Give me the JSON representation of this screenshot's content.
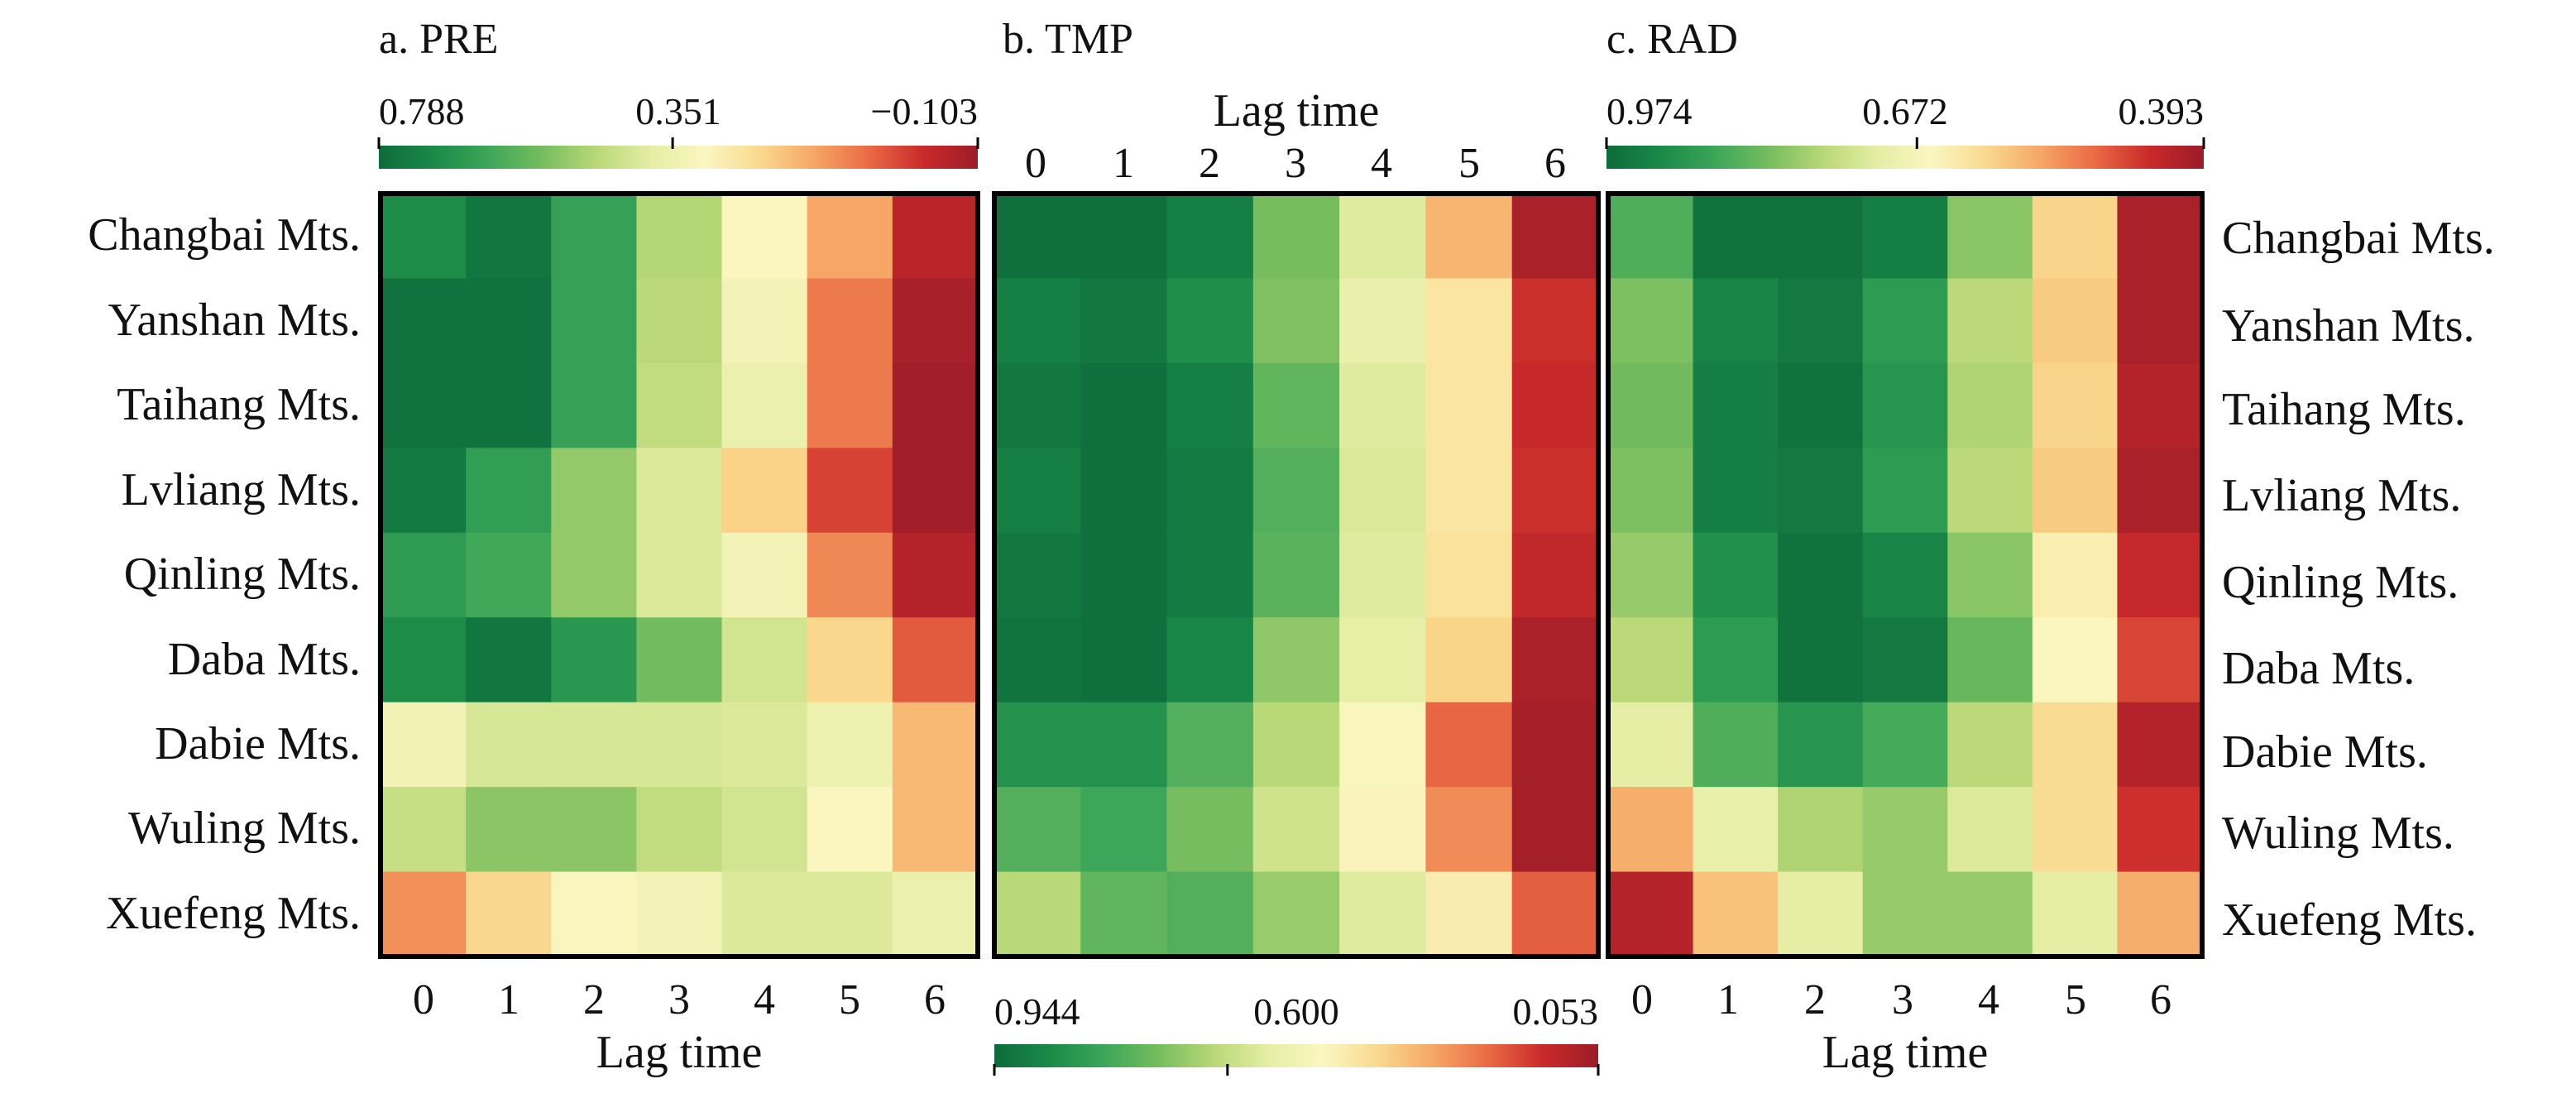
{
  "chart_data": [
    {
      "type": "heatmap",
      "panel": "a",
      "title": "a. PRE",
      "xlabel": "Lag time",
      "x": [
        "0",
        "1",
        "2",
        "3",
        "4",
        "5",
        "6"
      ],
      "regions": [
        "Changbai Mts.",
        "Yanshan Mts.",
        "Taihang Mts.",
        "Lvliang Mts.",
        "Qinling Mts.",
        "Daba Mts.",
        "Dabie Mts.",
        "Wuling Mts.",
        "Xuefeng Mts."
      ],
      "colorbar": {
        "min": -0.103,
        "max": 0.788,
        "ticks": [
          "0.788",
          "0.351",
          "−0.103"
        ],
        "tick_values": [
          0.788,
          0.351,
          -0.103
        ],
        "position": "top"
      },
      "values": [
        [
          0.7,
          0.76,
          0.64,
          0.47,
          0.3,
          0.14,
          -0.05
        ],
        [
          0.77,
          0.77,
          0.64,
          0.46,
          0.33,
          0.08,
          -0.08
        ],
        [
          0.77,
          0.77,
          0.64,
          0.45,
          0.36,
          0.08,
          -0.09
        ],
        [
          0.75,
          0.65,
          0.51,
          0.4,
          0.21,
          0.01,
          -0.09
        ],
        [
          0.66,
          0.62,
          0.51,
          0.4,
          0.33,
          0.1,
          -0.06
        ],
        [
          0.7,
          0.76,
          0.67,
          0.55,
          0.42,
          0.22,
          0.04
        ],
        [
          0.34,
          0.41,
          0.41,
          0.41,
          0.4,
          0.35,
          0.17
        ],
        [
          0.44,
          0.52,
          0.52,
          0.45,
          0.42,
          0.3,
          0.17
        ],
        [
          0.11,
          0.22,
          0.31,
          0.33,
          0.4,
          0.4,
          0.36
        ]
      ]
    },
    {
      "type": "heatmap",
      "panel": "b",
      "title": "b. TMP",
      "xlabel": "Lag time",
      "x": [
        "0",
        "1",
        "2",
        "3",
        "4",
        "5",
        "6"
      ],
      "regions": [
        "Changbai Mts.",
        "Yanshan Mts.",
        "Taihang Mts.",
        "Lvliang Mts.",
        "Qinling Mts.",
        "Daba Mts.",
        "Dabie Mts.",
        "Wuling Mts.",
        "Xuefeng Mts."
      ],
      "colorbar": {
        "min": 0.053,
        "max": 0.944,
        "ticks": [
          "0.944",
          "0.600",
          "0.053"
        ],
        "tick_values": [
          0.944,
          0.6,
          0.053
        ],
        "position": "bottom"
      },
      "values": [
        [
          0.93,
          0.93,
          0.89,
          0.7,
          0.55,
          0.32,
          0.08
        ],
        [
          0.89,
          0.91,
          0.85,
          0.69,
          0.52,
          0.41,
          0.14
        ],
        [
          0.91,
          0.93,
          0.89,
          0.73,
          0.55,
          0.41,
          0.13
        ],
        [
          0.89,
          0.93,
          0.9,
          0.75,
          0.56,
          0.41,
          0.14
        ],
        [
          0.91,
          0.93,
          0.9,
          0.74,
          0.55,
          0.4,
          0.12
        ],
        [
          0.92,
          0.93,
          0.87,
          0.67,
          0.53,
          0.37,
          0.08
        ],
        [
          0.84,
          0.84,
          0.75,
          0.62,
          0.47,
          0.21,
          0.07
        ],
        [
          0.75,
          0.78,
          0.7,
          0.58,
          0.45,
          0.26,
          0.07
        ],
        [
          0.62,
          0.73,
          0.75,
          0.66,
          0.55,
          0.43,
          0.2
        ]
      ]
    },
    {
      "type": "heatmap",
      "panel": "c",
      "title": "c. RAD",
      "xlabel": "Lag time",
      "x": [
        "0",
        "1",
        "2",
        "3",
        "4",
        "5",
        "6"
      ],
      "regions": [
        "Changbai Mts.",
        "Yanshan Mts.",
        "Taihang Mts.",
        "Lvliang Mts.",
        "Qinling Mts.",
        "Daba Mts.",
        "Dabie Mts.",
        "Wuling Mts.",
        "Xuefeng Mts."
      ],
      "colorbar": {
        "min": 0.393,
        "max": 0.974,
        "ticks": [
          "0.974",
          "0.672",
          "0.393"
        ],
        "tick_values": [
          0.974,
          0.672,
          0.393
        ],
        "position": "top"
      },
      "values": [
        [
          0.85,
          0.96,
          0.96,
          0.94,
          0.8,
          0.6,
          0.41
        ],
        [
          0.81,
          0.93,
          0.95,
          0.89,
          0.76,
          0.59,
          0.41
        ],
        [
          0.82,
          0.94,
          0.96,
          0.9,
          0.77,
          0.6,
          0.42
        ],
        [
          0.81,
          0.94,
          0.95,
          0.89,
          0.76,
          0.59,
          0.41
        ],
        [
          0.79,
          0.91,
          0.96,
          0.93,
          0.8,
          0.64,
          0.44
        ],
        [
          0.76,
          0.89,
          0.96,
          0.95,
          0.83,
          0.66,
          0.47
        ],
        [
          0.71,
          0.85,
          0.9,
          0.86,
          0.76,
          0.61,
          0.42
        ],
        [
          0.56,
          0.7,
          0.77,
          0.79,
          0.72,
          0.61,
          0.45
        ],
        [
          0.42,
          0.58,
          0.71,
          0.79,
          0.79,
          0.71,
          0.56
        ]
      ]
    }
  ],
  "colors": {
    "scale": [
      "#0d6b3b",
      "#1a8a48",
      "#3ca659",
      "#76bd5f",
      "#b9d877",
      "#e5eea4",
      "#fbf6c1",
      "#f9d98e",
      "#f6a665",
      "#ea6a45",
      "#c92a2a",
      "#9b1c28"
    ],
    "frame": "#000000"
  }
}
